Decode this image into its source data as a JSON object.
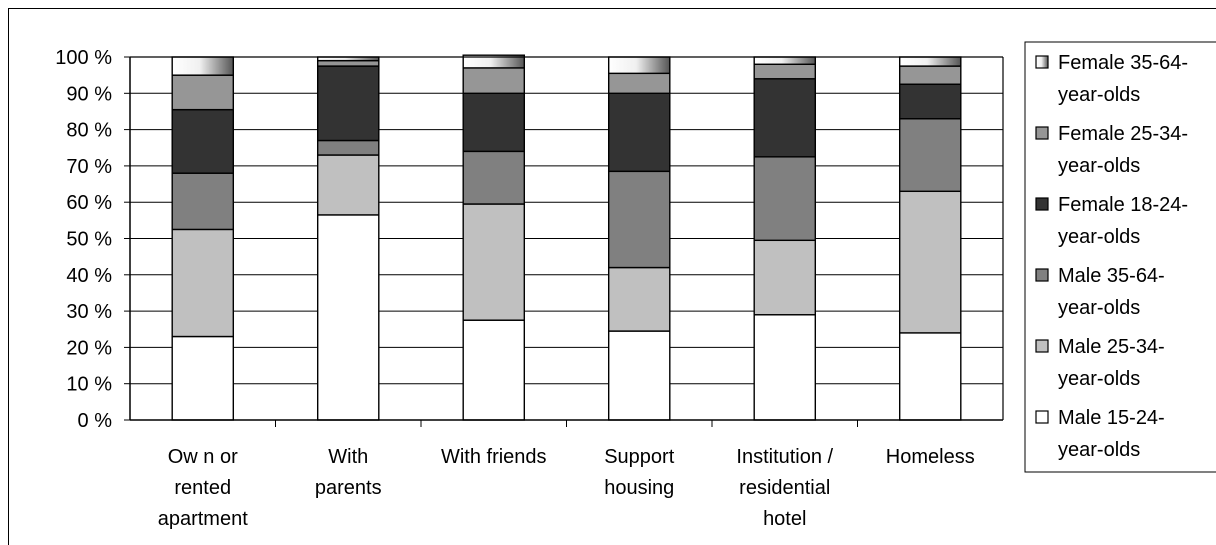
{
  "chart_data": {
    "type": "bar",
    "stacked": true,
    "percent_stacked": true,
    "categories": [
      [
        "Ow n or",
        "rented",
        "apartment"
      ],
      [
        "With",
        "parents"
      ],
      [
        "With friends"
      ],
      [
        "Support",
        "housing"
      ],
      [
        "Institution /",
        "residential",
        "hotel"
      ],
      [
        "Homeless"
      ]
    ],
    "y_ticks": [
      "0 %",
      "10 %",
      "20 %",
      "30 %",
      "40 %",
      "50 %",
      "60 %",
      "70 %",
      "80 %",
      "90 %",
      "100 %"
    ],
    "ylim": [
      0,
      100
    ],
    "grid": true,
    "legend_position": "right",
    "series": [
      {
        "name": "Male 15-24-year-olds",
        "legend_lines": [
          "Male 15-24-",
          "year-olds"
        ],
        "color": "#ffffff",
        "values": [
          23,
          56.5,
          27.5,
          24.5,
          29,
          24
        ]
      },
      {
        "name": "Male 25-34-year-olds",
        "legend_lines": [
          "Male 25-34-",
          "year-olds"
        ],
        "color": "#c0c0c0",
        "values": [
          29.5,
          16.5,
          32,
          17.5,
          20.5,
          39
        ]
      },
      {
        "name": "Male 35-64-year-olds",
        "legend_lines": [
          "Male 35-64-",
          "year-olds"
        ],
        "color": "#808080",
        "values": [
          15.5,
          4,
          14.5,
          26.5,
          23,
          20
        ]
      },
      {
        "name": "Female 18-24-year-olds",
        "legend_lines": [
          "Female 18-24-",
          "year-olds"
        ],
        "color": "#333333",
        "values": [
          17.5,
          20.5,
          16,
          21.5,
          21.5,
          9.5
        ]
      },
      {
        "name": "Female 25-34-year-olds",
        "legend_lines": [
          "Female 25-34-",
          "year-olds"
        ],
        "color": "#969696",
        "values": [
          9.5,
          1.5,
          7,
          5.5,
          4,
          5
        ]
      },
      {
        "name": "Female 35-64-year-olds",
        "legend_lines": [
          "Female 35-64-",
          "year-olds"
        ],
        "color": "gradient",
        "values": [
          5,
          1,
          3.5,
          4.5,
          2,
          2.5
        ]
      }
    ]
  }
}
